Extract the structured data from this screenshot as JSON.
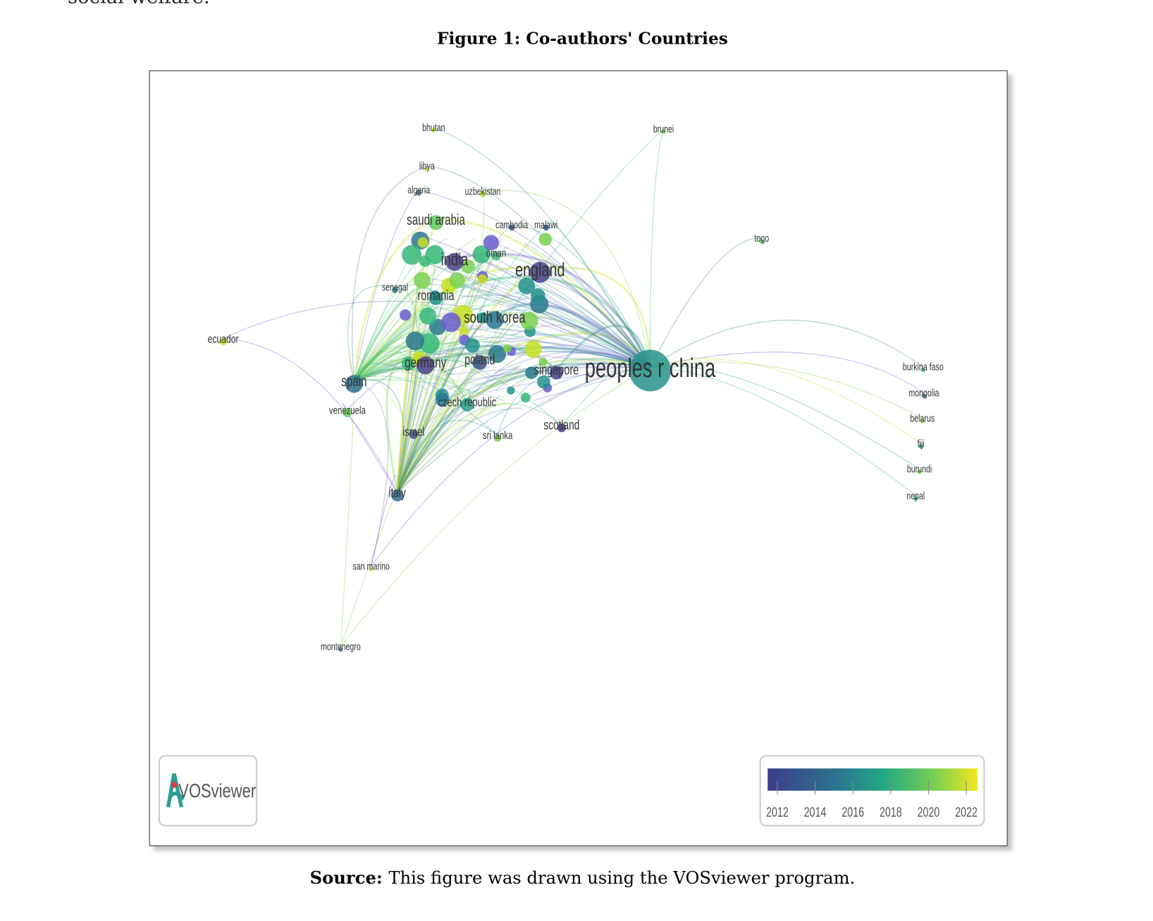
{
  "top_text": "social welfare.",
  "figure": {
    "caption": "Figure 1: Co-authors' Countries",
    "nodes": [
      "bhutan",
      "brunei",
      "libya",
      "algeria",
      "uzbekistan",
      "saudi arabia",
      "cambodia",
      "malawi",
      "togo",
      "india",
      "oman",
      "england",
      "senegal",
      "romania",
      "south korea",
      "ecuador",
      "germany",
      "poland",
      "singapore",
      "peoples r china",
      "burkina faso",
      "mongolia",
      "belarus",
      "fiji",
      "burundi",
      "nepal",
      "spain",
      "venezuela",
      "czech republic",
      "israel",
      "sri lanka",
      "scotland",
      "italy",
      "san marino",
      "montenegro"
    ],
    "logo": "VOSviewer",
    "legend_ticks": [
      2012,
      2014,
      2016,
      2018,
      2020,
      2022
    ]
  },
  "source": {
    "label": "Source:",
    "text": "This figure was drawn using the VOSviewer program."
  }
}
